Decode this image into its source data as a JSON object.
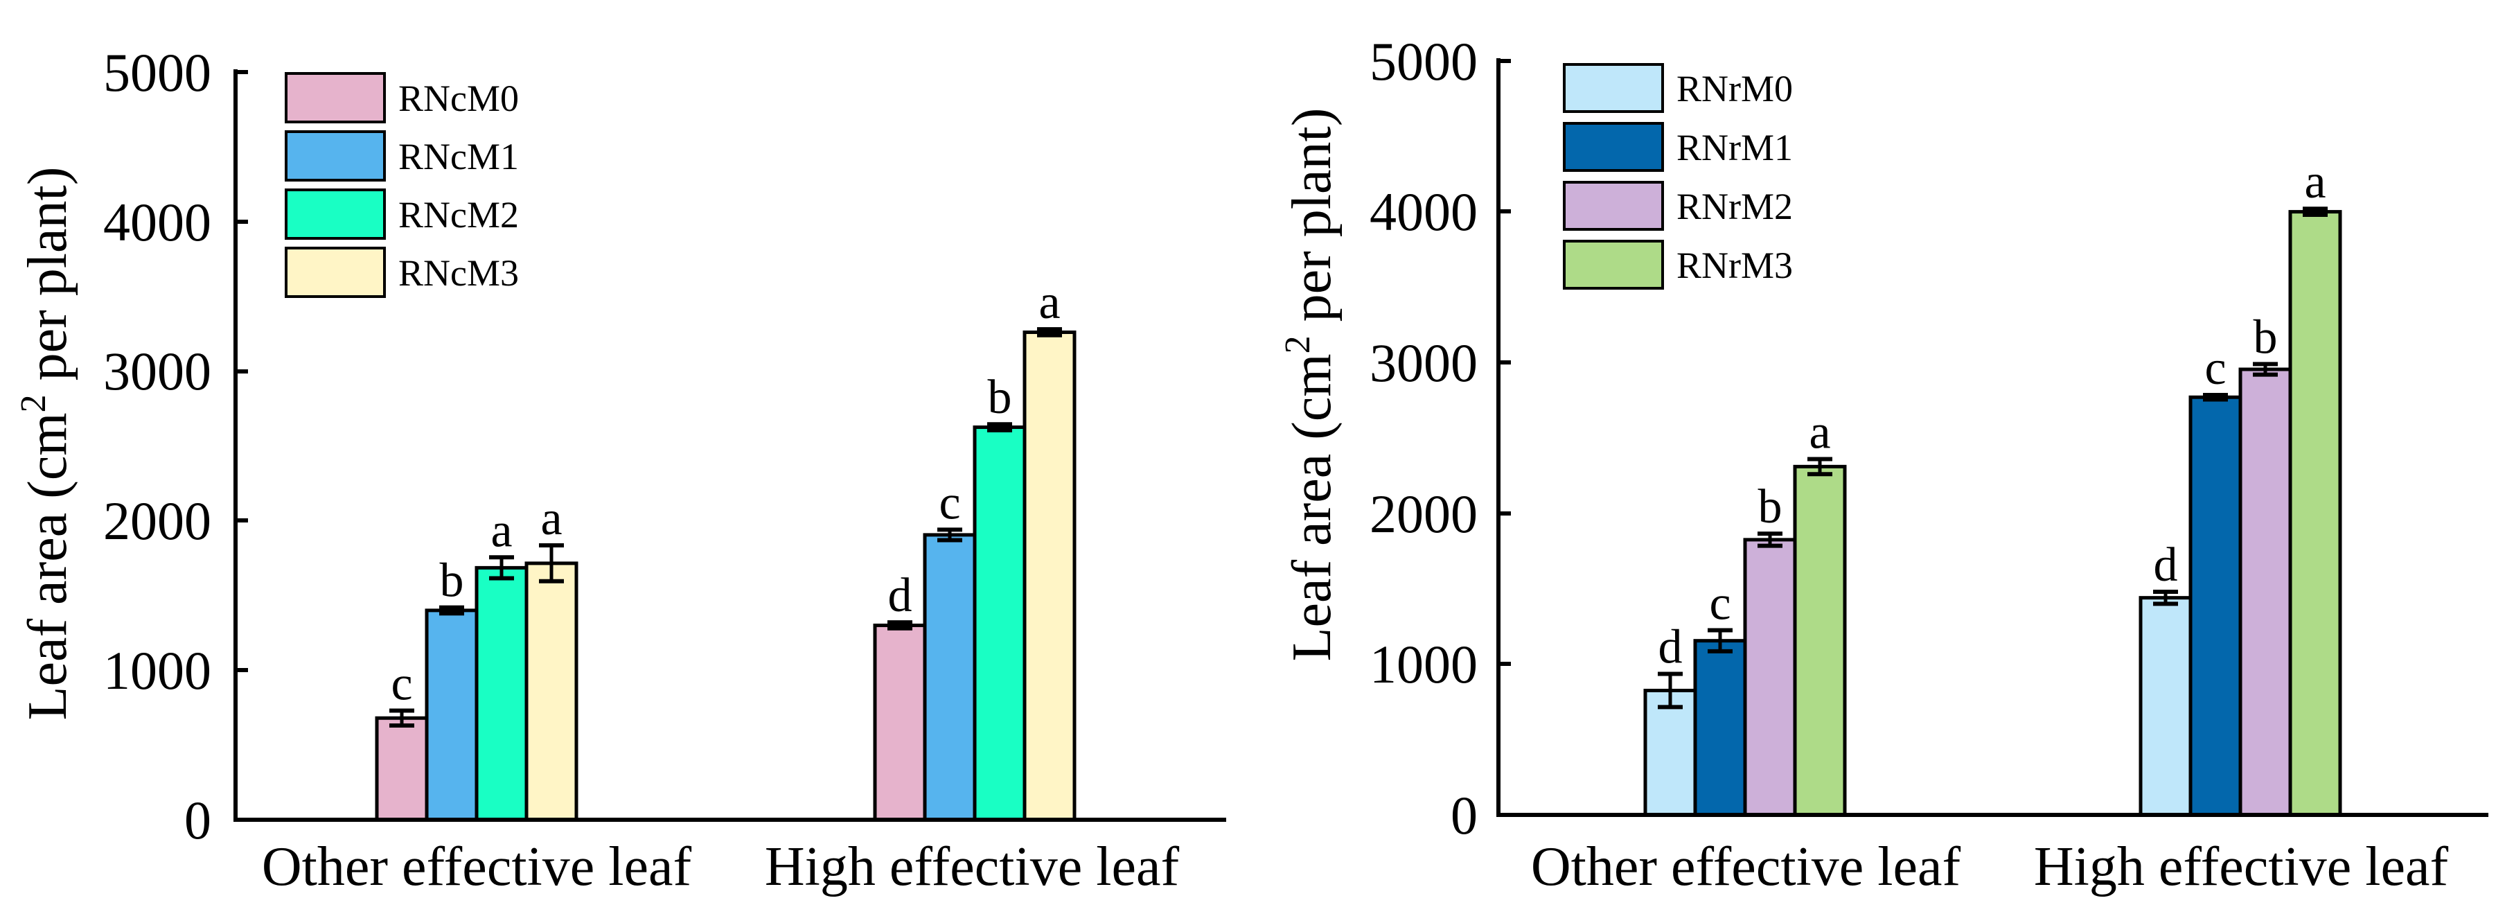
{
  "chart_data": [
    {
      "type": "bar",
      "panel": "left",
      "categories": [
        "Other effective leaf",
        "High effective leaf"
      ],
      "series": [
        {
          "name": "RNcM0",
          "color": "#E6B3CC",
          "values": [
            680,
            1300
          ],
          "errors": [
            50,
            20
          ],
          "letters": [
            "c",
            "d"
          ]
        },
        {
          "name": "RNcM1",
          "color": "#56B4EE",
          "values": [
            1400,
            1905
          ],
          "errors": [
            20,
            35
          ],
          "letters": [
            "b",
            "c"
          ]
        },
        {
          "name": "RNcM2",
          "color": "#19FFC4",
          "values": [
            1685,
            2625
          ],
          "errors": [
            70,
            20
          ],
          "letters": [
            "a",
            "b"
          ]
        },
        {
          "name": "RNcM3",
          "color": "#FFF5C6",
          "values": [
            1715,
            3260
          ],
          "errors": [
            120,
            20
          ],
          "letters": [
            "a",
            "a"
          ]
        }
      ],
      "ylabel": "Leaf area (cm² per plant)",
      "ylabel_main": "Leaf area (cm",
      "ylabel_sup": "2",
      "ylabel_rest": " per plant)",
      "ylim": [
        0,
        5000
      ],
      "yticks": [
        "0",
        "1000",
        "2000",
        "3000",
        "4000",
        "5000"
      ],
      "legend_position": "top-left",
      "grid": false
    },
    {
      "type": "bar",
      "panel": "right",
      "categories": [
        "Other effective leaf",
        "High effective leaf"
      ],
      "series": [
        {
          "name": "RNrM0",
          "color": "#BFE7FA",
          "values": [
            825,
            1440
          ],
          "errors": [
            110,
            40
          ],
          "letters": [
            "d",
            "d"
          ]
        },
        {
          "name": "RNrM1",
          "color": "#0367AC",
          "values": [
            1155,
            2770
          ],
          "errors": [
            70,
            15
          ],
          "letters": [
            "c",
            "c"
          ]
        },
        {
          "name": "RNrM2",
          "color": "#CDB0D9",
          "values": [
            1825,
            2955
          ],
          "errors": [
            40,
            35
          ],
          "letters": [
            "b",
            "b"
          ]
        },
        {
          "name": "RNrM3",
          "color": "#AEDB88",
          "values": [
            2310,
            4000
          ],
          "errors": [
            50,
            20
          ],
          "letters": [
            "a",
            "a"
          ]
        }
      ],
      "ylabel": "Leaf area (cm² per plant)",
      "ylabel_main": "Leaf area (cm",
      "ylabel_sup": "2",
      "ylabel_rest": " per plant)",
      "ylim": [
        0,
        5000
      ],
      "yticks": [
        "0",
        "1000",
        "2000",
        "3000",
        "4000",
        "5000"
      ],
      "legend_position": "top-left",
      "grid": false
    }
  ]
}
